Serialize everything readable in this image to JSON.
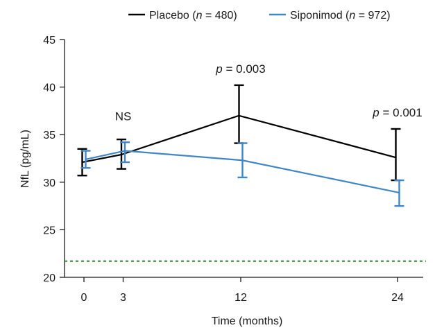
{
  "chart_data": {
    "type": "line",
    "title": "",
    "xlabel": "Time (months)",
    "ylabel": "NfL (pg/mL)",
    "x": [
      0,
      3,
      12,
      24
    ],
    "x_ticks": [
      "0",
      "3",
      "12",
      "24"
    ],
    "ylim": [
      20,
      45
    ],
    "y_ticks": [
      "20",
      "25",
      "30",
      "35",
      "40",
      "45"
    ],
    "grid": false,
    "legend_position": "top",
    "series": [
      {
        "name": "Placebo (n = 480)",
        "name_prefix": "Placebo (",
        "name_n": "n",
        "name_suffix": " = 480)",
        "color": "#000000",
        "values": [
          32.1,
          32.9,
          37.0,
          32.6
        ],
        "error_low": [
          30.7,
          31.4,
          34.1,
          30.2
        ],
        "error_high": [
          33.5,
          34.5,
          40.2,
          35.6
        ]
      },
      {
        "name": "Siponimod (n = 972)",
        "name_prefix": "Siponimod (",
        "name_n": "n",
        "name_suffix": " = 972)",
        "color": "#3f86c7",
        "values": [
          32.4,
          33.3,
          32.3,
          28.9
        ],
        "error_low": [
          31.5,
          32.1,
          30.5,
          27.5
        ],
        "error_high": [
          33.3,
          34.2,
          34.1,
          30.2
        ]
      }
    ],
    "reference_line": {
      "y": 21.7,
      "color": "#2e8b2e",
      "style": "dashed"
    },
    "annotations": [
      {
        "label": "NS",
        "x": 3,
        "y": 36.5
      },
      {
        "label_p": "p",
        "label_rest": " = 0.003",
        "x": 12,
        "y": 41.5
      },
      {
        "label_p": "p",
        "label_rest": " = 0.001",
        "x": 24,
        "y": 36.9
      }
    ]
  }
}
